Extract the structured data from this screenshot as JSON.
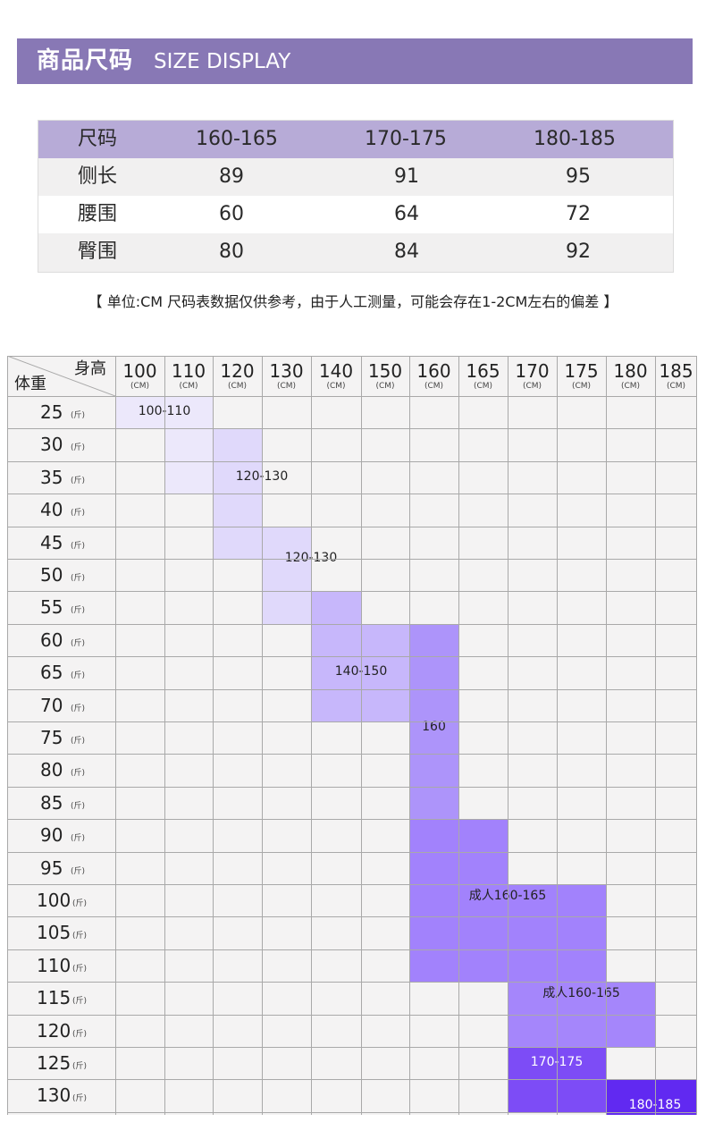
{
  "banner": {
    "title": "商品尺码",
    "subtitle": "SIZE DISPLAY"
  },
  "size_table": {
    "header": [
      "尺码",
      "160-165",
      "170-175",
      "180-185"
    ],
    "rows": [
      {
        "label": "侧长",
        "values": [
          "89",
          "91",
          "95"
        ]
      },
      {
        "label": "腰围",
        "values": [
          "60",
          "64",
          "72"
        ]
      },
      {
        "label": "臀围",
        "values": [
          "80",
          "84",
          "92"
        ]
      }
    ]
  },
  "note": "【 单位:CM 尺码表数据仅供参考，由于人工测量，可能会存在1-2CM左右的偏差 】",
  "chart": {
    "corner_height_label": "身高",
    "corner_weight_label": "体重",
    "height_unit": "(CM)",
    "weight_unit": "(斤)",
    "heights": [
      "100",
      "110",
      "120",
      "130",
      "140",
      "150",
      "160",
      "165",
      "170",
      "175",
      "180",
      "185"
    ],
    "weights": [
      "25",
      "30",
      "35",
      "40",
      "45",
      "50",
      "55",
      "60",
      "65",
      "70",
      "75",
      "80",
      "85",
      "90",
      "95",
      "100",
      "105",
      "110",
      "115",
      "120",
      "125",
      "130"
    ],
    "regions": [
      {
        "label": "100-110",
        "color": "#ece8fb"
      },
      {
        "label": "120-130",
        "color": "#e0d9fb"
      },
      {
        "label": "120-130",
        "color": "#e0d9fb"
      },
      {
        "label": "140-150",
        "color": "#c7b7fb"
      },
      {
        "label": "160",
        "color": "#ad94fa"
      },
      {
        "label": "成人160-165",
        "color": "#a282fc"
      },
      {
        "label": "成人160-165",
        "color": "#a586fb"
      },
      {
        "label": "170-175",
        "color": "#7d4cf6"
      },
      {
        "label": "180-185",
        "color": "#6129f1"
      }
    ]
  }
}
